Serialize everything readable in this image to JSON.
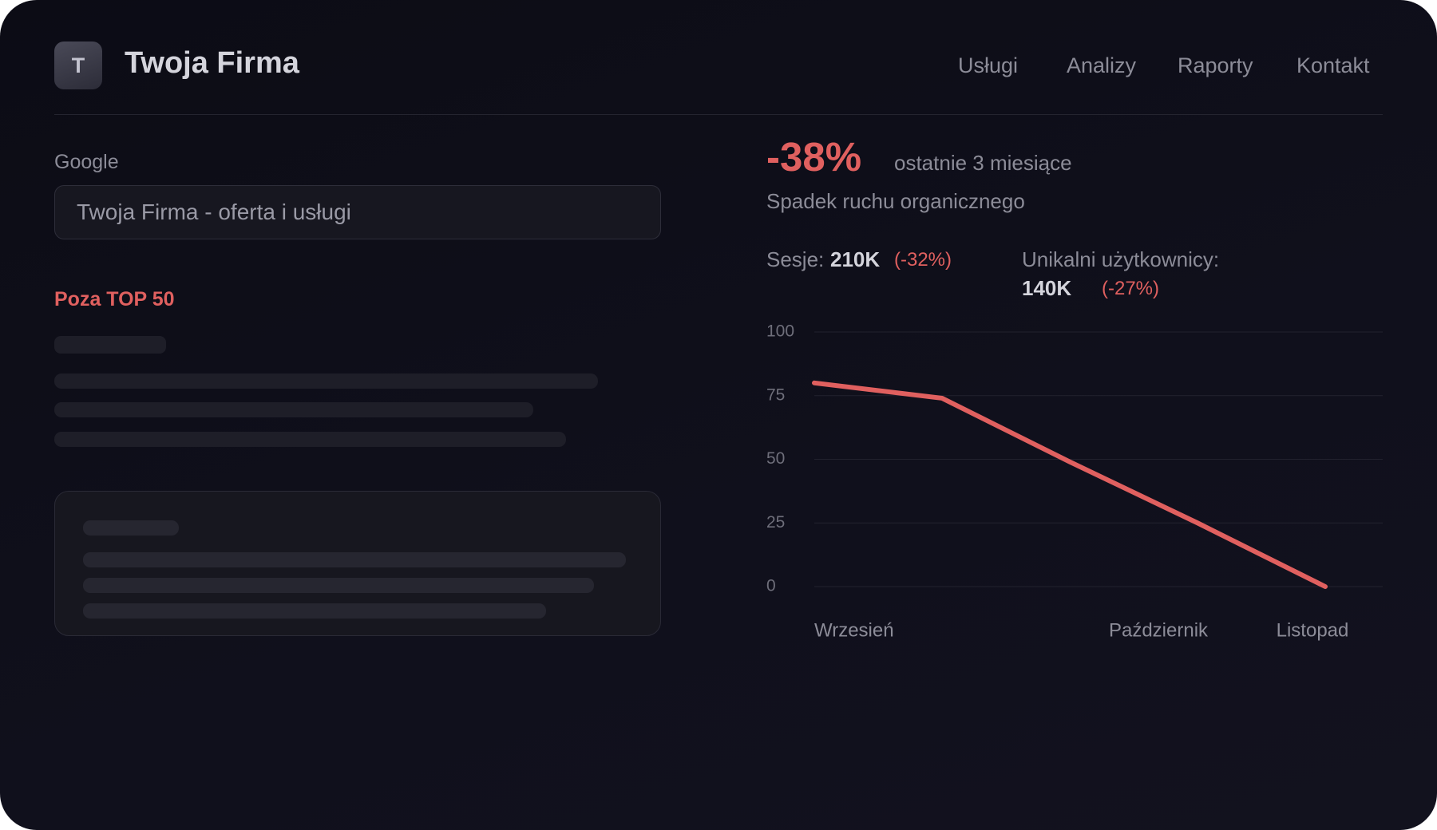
{
  "header": {
    "logo": "T",
    "title": "Twoja Firma",
    "nav": [
      "Usługi",
      "Analizy",
      "Raporty",
      "Kontakt"
    ]
  },
  "search": {
    "label": "Google",
    "query": "Twoja Firma - oferta i usługi"
  },
  "ranking": "Poza TOP 50",
  "stats": {
    "change": "-38%",
    "period": "ostatnie 3 miesiące",
    "caption": "Spadek ruchu organicznego",
    "sessions_label": "Sesje:",
    "sessions": "210K",
    "sessions_change": "(-32%)",
    "users_label": "Unikalni użytkownicy:",
    "users": "140K",
    "users_change": "(-27%)"
  },
  "chart_data": {
    "type": "line",
    "categories": [
      "Wrzesień",
      null,
      "Październik",
      null,
      "Listopad"
    ],
    "values": [
      80,
      74,
      49,
      25,
      0
    ],
    "color": "#e0605f",
    "ylim": [
      0,
      100
    ],
    "yticks": [
      0,
      25,
      50,
      75,
      100
    ],
    "grid": true
  }
}
